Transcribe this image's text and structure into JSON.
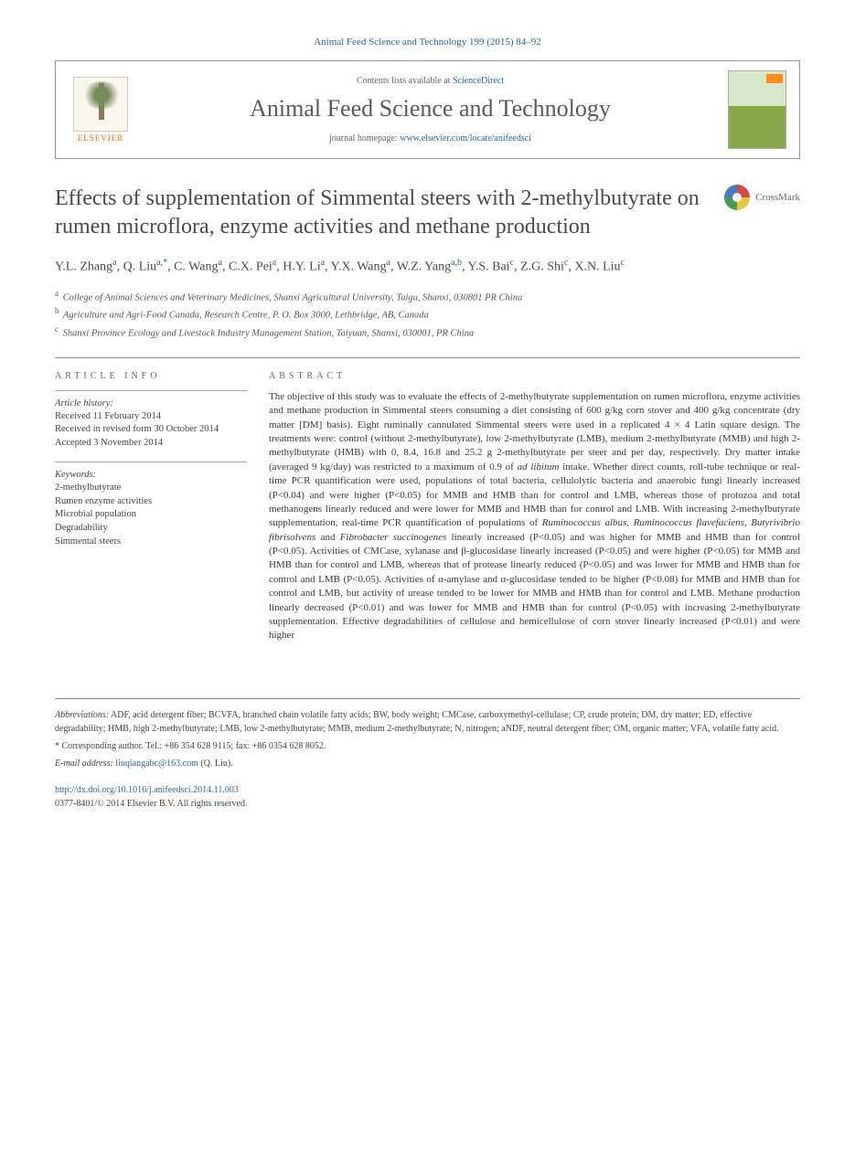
{
  "journal_ref": "Animal Feed Science and Technology 199 (2015) 84–92",
  "header": {
    "contents_prefix": "Contents lists available at ",
    "contents_link": "ScienceDirect",
    "journal_name": "Animal Feed Science and Technology",
    "homepage_prefix": "journal homepage: ",
    "homepage_url": "www.elsevier.com/locate/anifeedsci",
    "publisher": "ELSEVIER"
  },
  "crossmark_label": "CrossMark",
  "title": "Effects of supplementation of Simmental steers with 2-methylbutyrate on rumen microflora, enzyme activities and methane production",
  "authors_html": "Y.L. Zhang<sup>a</sup>, Q. Liu<sup>a,*</sup>, C. Wang<sup>a</sup>, C.X. Pei<sup>a</sup>, H.Y. Li<sup>a</sup>, Y.X. Wang<sup>a</sup>, W.Z. Yang<sup>a,b</sup>, Y.S. Bai<sup>c</sup>, Z.G. Shi<sup>c</sup>, X.N. Liu<sup>c</sup>",
  "affiliations": [
    {
      "sup": "a",
      "text": "College of Animal Sciences and Veterinary Medicines, Shanxi Agricultural University, Taigu, Shanxi, 030801 PR China"
    },
    {
      "sup": "b",
      "text": "Agriculture and Agri-Food Canada, Research Centre, P. O. Box 3000, Lethbridge, AB, Canada"
    },
    {
      "sup": "c",
      "text": "Shanxi Province Ecology and Livestock Industry Management Station, Taiyuan, Shanxi, 030001, PR China"
    }
  ],
  "article_info": {
    "heading": "ARTICLE INFO",
    "history_label": "Article history:",
    "history": [
      "Received 11 February 2014",
      "Received in revised form 30 October 2014",
      "Accepted 3 November 2014"
    ],
    "keywords_label": "Keywords:",
    "keywords": [
      "2-methylbutyrate",
      "Rumen enzyme activities",
      "Microbial population",
      "Degradability",
      "Simmental steers"
    ]
  },
  "abstract": {
    "heading": "ABSTRACT",
    "text": "The objective of this study was to evaluate the effects of 2-methylbutyrate supplementation on rumen microflora, enzyme activities and methane production in Simmental steers consuming a diet consisting of 600 g/kg corn stover and 400 g/kg concentrate (dry matter [DM] basis). Eight ruminally cannulated Simmental steers were used in a replicated 4 × 4 Latin square design. The treatments were: control (without 2-methylbutyrate), low 2-methylbutyrate (LMB), medium 2-methylbutyrate (MMB) and high 2-methylbutyrate (HMB) with 0, 8.4, 16.8 and 25.2 g 2-methylbutyrate per steer and per day, respectively. Dry matter intake (averaged 9 kg/day) was restricted to a maximum of 0.9 of ad libitum intake. Whether direct counts, roll-tube technique or real-time PCR quantification were used, populations of total bacteria, cellulolytic bacteria and anaerobic fungi linearly increased (P<0.04) and were higher (P<0.05) for MMB and HMB than for control and LMB, whereas those of protozoa and total methanogens linearly reduced and were lower for MMB and HMB than for control and LMB. With increasing 2-methylbutyrate supplementation, real-time PCR quantification of populations of Ruminococcus albus, Ruminococcus flavefaciens, Butyrivibrio fibrisolvens and Fibrobacter succinogenes linearly increased (P<0.05) and was higher for MMB and HMB than for control (P<0.05). Activities of CMCase, xylanase and β-glucosidase linearly increased (P<0.05) and were higher (P<0.05) for MMB and HMB than for control and LMB, whereas that of protease linearly reduced (P<0.05) and was lower for MMB and HMB than for control and LMB (P<0.05). Activities of α-amylase and α-glucosidase tended to be higher (P<0.08) for MMB and HMB than for control and LMB, but activity of urease tended to be lower for MMB and HMB than for control and LMB. Methane production linearly decreased (P<0.01) and was lower for MMB and HMB than for control (P<0.05) with increasing 2-methylbutyrate supplementation. Effective degradabilities of cellulose and hemicellulose of corn stover linearly increased (P<0.01) and were higher"
  },
  "footnotes": {
    "abbrev_label": "Abbreviations:",
    "abbrev_text": " ADF, acid detergent fiber; BCVFA, branched chain volatile fatty acids; BW, body weight; CMCase, carboxymethyl-cellulase; CP, crude protein; DM, dry matter; ED, effective degradability; HMB, high 2-methylbutyrate; LMB, low 2-methylbutyrate; MMB, medium 2-methylbutyrate; N, nitrogen; aNDF, neutral detergent fiber; OM, organic matter; VFA, volatile fatty acid.",
    "corresponding": "* Corresponding author. Tel.: +86 354 628 9115; fax: +86 0354 628 8052.",
    "email_label": "E-mail address:",
    "email": " liuqiangabc@163.com",
    "email_suffix": " (Q. Liu).",
    "doi": "http://dx.doi.org/10.1016/j.anifeedsci.2014.11.003",
    "copyright": "0377-8401/© 2014 Elsevier B.V. All rights reserved."
  },
  "colors": {
    "link": "#2967a3",
    "publisher": "#ff6600",
    "text": "#3a3a3a",
    "border": "#888888"
  },
  "typography": {
    "title_fontsize": 24,
    "journal_name_fontsize": 26,
    "body_fontsize": 11,
    "footnote_fontsize": 10
  }
}
